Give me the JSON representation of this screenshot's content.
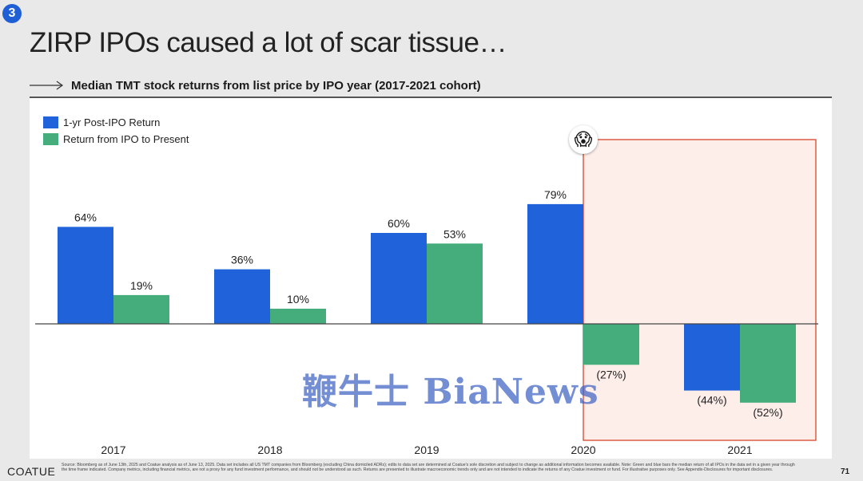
{
  "header": {
    "section_number": "3",
    "title": "ZIRP IPOs caused a lot of scar tissue…",
    "subtitle": "Median TMT stock returns from list price by IPO year (2017-2021 cohort)"
  },
  "colors": {
    "series_1": "#1f62d9",
    "series_2": "#45ad7c",
    "highlight_border": "#d9442c",
    "highlight_fill": "#fdeeea",
    "badge": "#1f5fd6"
  },
  "icons": {
    "section_badge": "number-badge",
    "alert_emoji": "😱",
    "arrow": "right-arrow-icon"
  },
  "watermark": "鞭牛士 BiaNews",
  "footer": {
    "logo": "COATUE",
    "note": "Source: Bloomberg as of June 13th, 2025 and Coatue analysis as of June 13, 2025. Data set includes all US TMT companies from Bloomberg (excluding China domiciled ADRs); edits to data set are determined at Coatue's sole discretion and subject to change as additional information becomes available. Note: Green and blue bars the median return of all IPOs in the data set in a given year through the time frame indicated. Company metrics, including financial metrics, are not a proxy for any fund investment performance, and should not be understood as such. Returns are presented to illustrate macroeconomic trends only and are not intended to indicate the returns of any Coatue investment or fund. For illustrative purposes only. See Appendix-Disclosures for important disclosures.",
    "page_number": "71"
  },
  "chart_data": {
    "type": "bar",
    "categories": [
      "2017",
      "2018",
      "2019",
      "2020",
      "2021"
    ],
    "series": [
      {
        "name": "1-yr Post-IPO Return",
        "values": [
          64,
          36,
          60,
          79,
          -44
        ],
        "labels": [
          "64%",
          "36%",
          "60%",
          "79%",
          "(44%)"
        ]
      },
      {
        "name": "Return from IPO to Present",
        "values": [
          19,
          10,
          53,
          -27,
          -52
        ],
        "labels": [
          "19%",
          "10%",
          "53%",
          "(27%)",
          "(52%)"
        ]
      }
    ],
    "ylim": [
      -62,
      95
    ],
    "grid": false,
    "legend": "top-left",
    "highlight_categories": [
      "2020",
      "2021"
    ]
  }
}
